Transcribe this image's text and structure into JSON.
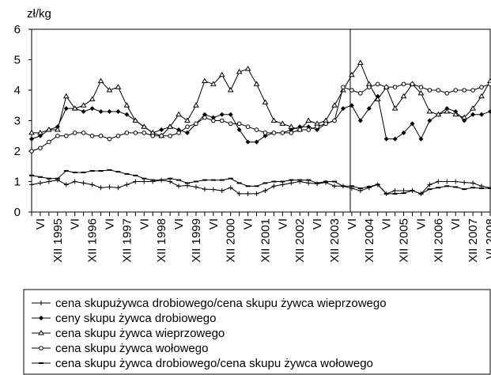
{
  "chart_data": {
    "type": "line",
    "y_label": "zł/kg",
    "categories": [
      null,
      "VI",
      null,
      "XII 1995",
      null,
      "VI",
      null,
      "XII 1996",
      null,
      "VI",
      null,
      "XII 1997",
      null,
      "VI",
      null,
      "XII 1998",
      null,
      "VI",
      null,
      "XII 1999",
      null,
      "VI",
      null,
      "XII 2000",
      null,
      "VI",
      null,
      "XII 2001",
      null,
      "VI",
      null,
      "XII 2002",
      null,
      "VI",
      null,
      "XII 2003",
      null,
      "VI",
      null,
      "XII 2004",
      null,
      "VI",
      null,
      "XII 2005",
      null,
      "VI",
      null,
      "XII 2006",
      null,
      "VI",
      null,
      "XII 2007",
      null,
      "VI 2008"
    ],
    "ylim": [
      0,
      6
    ],
    "yticks": [
      0,
      1,
      2,
      3,
      4,
      5,
      6
    ],
    "grid": false,
    "series": [
      {
        "name": "cena skupużywca drobiowego/cena skupu żywca wieprzowego",
        "color": "#000000",
        "marker": "plus",
        "values": [
          0.9,
          0.95,
          1.0,
          1.05,
          0.9,
          1.0,
          0.95,
          0.9,
          0.8,
          0.82,
          0.8,
          0.9,
          1.0,
          1.0,
          1.0,
          1.05,
          1.0,
          0.85,
          0.87,
          0.82,
          0.75,
          0.74,
          0.7,
          0.8,
          0.6,
          0.6,
          0.6,
          0.7,
          0.85,
          0.9,
          0.95,
          1.0,
          0.95,
          0.93,
          0.97,
          0.85,
          0.85,
          0.78,
          0.7,
          0.8,
          0.9,
          0.6,
          0.7,
          0.7,
          0.7,
          0.6,
          0.9,
          1.0,
          1.0,
          1.0,
          0.97,
          0.95,
          0.85,
          0.8
        ]
      },
      {
        "name": "ceny skupu żywca drobiowego",
        "color": "#000000",
        "marker": "diamond",
        "values": [
          2.4,
          2.5,
          2.7,
          2.8,
          3.4,
          3.4,
          3.3,
          3.4,
          3.3,
          3.3,
          3.3,
          3.2,
          3.0,
          2.8,
          2.6,
          2.7,
          2.8,
          2.7,
          2.6,
          2.9,
          3.2,
          3.1,
          3.2,
          3.2,
          2.7,
          2.3,
          2.3,
          2.5,
          2.6,
          2.6,
          2.7,
          2.8,
          2.8,
          2.7,
          2.9,
          3.0,
          3.4,
          3.5,
          3.0,
          3.4,
          3.8,
          2.4,
          2.4,
          2.6,
          2.9,
          2.4,
          3.0,
          3.2,
          3.4,
          3.3,
          3.0,
          3.2,
          3.2,
          3.3
        ]
      },
      {
        "name": "cena skupu żywca wieprzowego",
        "color": "#000000",
        "marker": "triangle",
        "values": [
          2.6,
          2.6,
          2.7,
          2.7,
          3.8,
          3.4,
          3.5,
          3.7,
          4.3,
          4.0,
          4.1,
          3.5,
          3.0,
          2.8,
          2.6,
          2.5,
          2.8,
          3.2,
          3.0,
          3.5,
          4.3,
          4.2,
          4.5,
          4.0,
          4.6,
          4.7,
          4.2,
          3.6,
          3.0,
          2.9,
          2.8,
          2.7,
          3.0,
          2.9,
          3.0,
          3.5,
          4.0,
          4.5,
          4.9,
          4.2,
          3.7,
          4.1,
          3.4,
          3.8,
          4.2,
          3.9,
          3.3,
          3.2,
          3.3,
          3.2,
          3.1,
          3.4,
          3.8,
          4.3
        ]
      },
      {
        "name": "cena skupu żywca wołowego",
        "color": "#000000",
        "marker": "circle",
        "values": [
          2.0,
          2.1,
          2.3,
          2.5,
          2.5,
          2.6,
          2.6,
          2.5,
          2.5,
          2.4,
          2.5,
          2.6,
          2.6,
          2.6,
          2.5,
          2.5,
          2.5,
          2.6,
          2.8,
          2.9,
          3.1,
          3.0,
          3.0,
          2.9,
          2.9,
          2.8,
          2.7,
          2.6,
          2.6,
          2.6,
          2.6,
          2.7,
          2.7,
          2.8,
          2.9,
          3.0,
          4.1,
          4.0,
          3.9,
          4.1,
          4.2,
          4.1,
          4.1,
          4.2,
          4.2,
          4.1,
          4.0,
          4.0,
          3.9,
          4.0,
          4.0,
          4.0,
          4.1,
          4.2
        ]
      },
      {
        "name": "cena skupu żywca drobiowego/cena skupu żywca wołowego",
        "color": "#000000",
        "marker": "dash",
        "values": [
          1.2,
          1.15,
          1.1,
          1.1,
          1.35,
          1.3,
          1.3,
          1.35,
          1.35,
          1.38,
          1.32,
          1.25,
          1.2,
          1.1,
          1.05,
          1.05,
          1.1,
          1.05,
          0.95,
          1.0,
          1.05,
          1.05,
          1.05,
          1.1,
          0.95,
          0.85,
          0.85,
          0.95,
          1.0,
          1.0,
          1.05,
          1.05,
          1.05,
          0.95,
          1.0,
          1.0,
          0.85,
          0.85,
          0.78,
          0.83,
          0.9,
          0.6,
          0.6,
          0.62,
          0.7,
          0.6,
          0.75,
          0.8,
          0.85,
          0.82,
          0.75,
          0.8,
          0.78,
          0.78
        ]
      }
    ]
  }
}
